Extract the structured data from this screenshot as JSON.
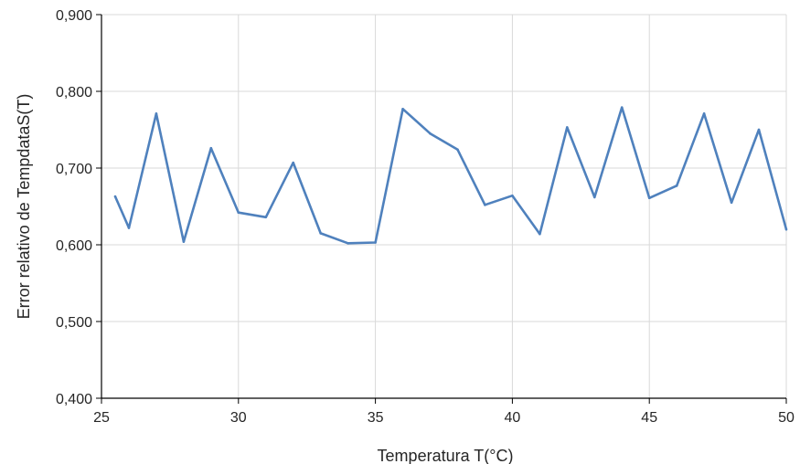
{
  "chart_data": {
    "type": "line",
    "title": "",
    "xlabel": "Temperatura T(°C)",
    "ylabel": "Error relativo  de TempdataS(T)",
    "xlim": [
      25,
      50
    ],
    "ylim": [
      0.4,
      0.9
    ],
    "x_ticks": [
      25,
      30,
      35,
      40,
      45,
      50
    ],
    "x_tick_labels": [
      "25",
      "30",
      "35",
      "40",
      "45",
      "50"
    ],
    "y_ticks": [
      0.4,
      0.5,
      0.6,
      0.7,
      0.8,
      0.9
    ],
    "y_tick_labels": [
      "0,400",
      "0,500",
      "0,600",
      "0,700",
      "0,800",
      "0,900"
    ],
    "grid": true,
    "legend": "none",
    "series": [
      {
        "color": "#4f81bd",
        "x": [
          25.5,
          26,
          27,
          28,
          29,
          30,
          31,
          32,
          33,
          34,
          35,
          36,
          37,
          38,
          39,
          40,
          41,
          42,
          43,
          44,
          45,
          46,
          47,
          48,
          49,
          50
        ],
        "y": [
          0.663,
          0.622,
          0.771,
          0.604,
          0.726,
          0.642,
          0.636,
          0.707,
          0.615,
          0.602,
          0.603,
          0.777,
          0.745,
          0.724,
          0.652,
          0.664,
          0.614,
          0.753,
          0.662,
          0.779,
          0.661,
          0.677,
          0.771,
          0.655,
          0.75,
          0.62
        ]
      }
    ]
  }
}
